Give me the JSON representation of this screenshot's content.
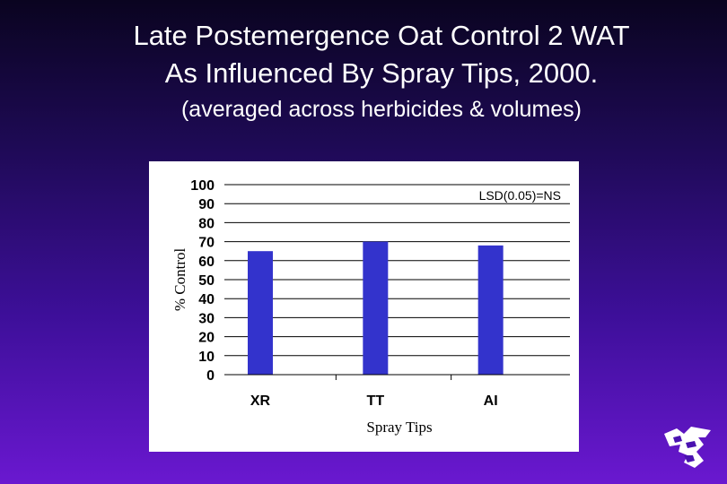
{
  "slide": {
    "title_line_1": "Late Postemergence Oat Control 2 WAT",
    "title_line_2": "As Influenced By Spray Tips, 2000.",
    "subtitle": "(averaged across herbicides & volumes)"
  },
  "chart_data": {
    "type": "bar",
    "categories": [
      "XR",
      "TT",
      "AI"
    ],
    "values": [
      65,
      70,
      68
    ],
    "ylabel": "% Control",
    "xlabel": "Spray Tips",
    "ylim": [
      0,
      100
    ],
    "yticks": [
      "0",
      "10",
      "20",
      "30",
      "40",
      "50",
      "60",
      "70",
      "80",
      "90",
      "100"
    ],
    "annotation": "LSD(0.05)=NS",
    "grid": true,
    "bar_color": "#3333cc"
  },
  "logo": {
    "icon": "powercat-logo-icon"
  }
}
